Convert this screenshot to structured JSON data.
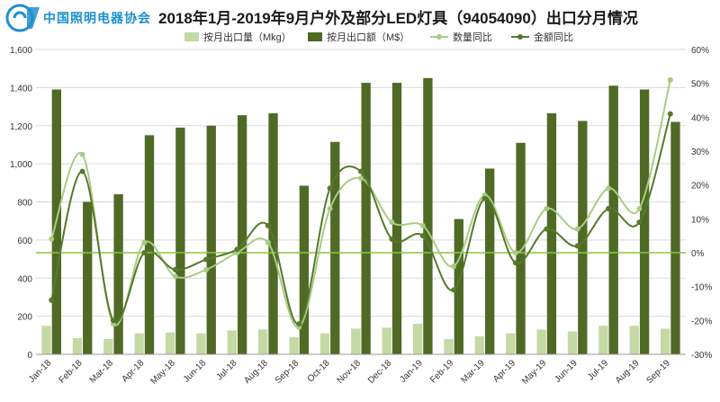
{
  "header": {
    "logo_text": "中国照明电器协会",
    "title": "2018年1月-2019年9月户外及部分LED灯具（94054090）出口分月情况"
  },
  "colors": {
    "volume_bar": "#c5d9a5",
    "value_bar": "#4f6a25",
    "volume_line": "#a8cc82",
    "value_line": "#557a2c",
    "zero_line": "#8cc63f",
    "logo": "#1f8fd0"
  },
  "chart_data": {
    "type": "bar",
    "title": "2018年1月-2019年9月户外及部分LED灯具（94054090）出口分月情况",
    "categories": [
      "Jan-18",
      "Feb-18",
      "Mar-18",
      "Apr-18",
      "May-18",
      "Jun-18",
      "Jul-18",
      "Aug-18",
      "Sep-18",
      "Oct-18",
      "Nov-18",
      "Dec-18",
      "Jan-19",
      "Feb-19",
      "Mar-19",
      "Apr-19",
      "May-19",
      "Jun-19",
      "Jul-19",
      "Aug-19",
      "Sep-19"
    ],
    "y_left": {
      "min": 0,
      "max": 1600,
      "step": 200,
      "ticks": [
        "0",
        "200",
        "400",
        "600",
        "800",
        "1,000",
        "1,200",
        "1,400",
        "1,600"
      ]
    },
    "y_right": {
      "min": -30,
      "max": 60,
      "step": 10,
      "ticks": [
        "-30%",
        "-20%",
        "-10%",
        "0%",
        "10%",
        "20%",
        "30%",
        "40%",
        "50%",
        "60%"
      ]
    },
    "grid": true,
    "legend_position": "top",
    "legend": [
      "按月出口量（Mkg）",
      "按月出口额（M$）",
      "数量同比",
      "金额同比"
    ],
    "series": [
      {
        "name": "按月出口量（Mkg）",
        "type": "bar",
        "axis": "left",
        "values": [
          150,
          85,
          80,
          110,
          115,
          110,
          125,
          130,
          90,
          110,
          135,
          140,
          160,
          80,
          95,
          110,
          130,
          120,
          150,
          150,
          135
        ]
      },
      {
        "name": "按月出口额（M$）",
        "type": "bar",
        "axis": "left",
        "values": [
          1390,
          800,
          840,
          1150,
          1190,
          1200,
          1255,
          1265,
          885,
          1115,
          1425,
          1425,
          1450,
          710,
          975,
          1110,
          1265,
          1225,
          1410,
          1390,
          1220
        ]
      },
      {
        "name": "数量同比",
        "type": "line",
        "axis": "right",
        "values": [
          4,
          29,
          -21,
          3,
          -7,
          -5,
          0,
          3,
          -22,
          13,
          22,
          9,
          8,
          -4,
          17,
          0,
          13,
          7,
          19,
          13,
          51
        ]
      },
      {
        "name": "金额同比",
        "type": "line",
        "axis": "right",
        "values": [
          -14,
          24,
          -20,
          0,
          -5,
          -2,
          1,
          8,
          -21,
          19,
          24,
          4,
          5,
          -11,
          16,
          -3,
          7,
          2,
          13,
          9,
          41
        ]
      }
    ]
  }
}
